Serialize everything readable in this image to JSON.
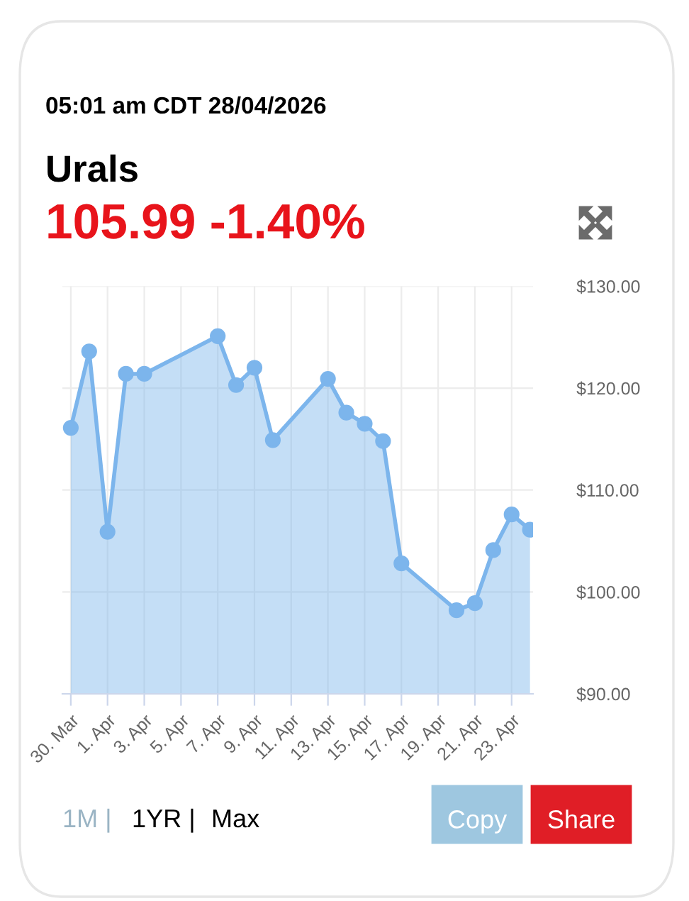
{
  "chart_data": {
    "type": "area",
    "title": "Urals",
    "subtitle": "105.99 -1.40%",
    "annotations": [
      "05:01 am CDT 28/04/2026",
      "1M |",
      "1YR |",
      "Max",
      "Copy",
      "Share"
    ],
    "x": [
      "2026-03-30",
      "2026-03-31",
      "2026-04-01",
      "2026-04-02",
      "2026-04-03",
      "2026-04-07",
      "2026-04-08",
      "2026-04-09",
      "2026-04-10",
      "2026-04-13",
      "2026-04-14",
      "2026-04-15",
      "2026-04-16",
      "2026-04-17",
      "2026-04-20",
      "2026-04-21",
      "2026-04-22",
      "2026-04-23",
      "2026-04-24"
    ],
    "series": [
      {
        "color": "#7cb5ec",
        "values": [
          116.1,
          123.6,
          105.9,
          121.4,
          121.4,
          125.1,
          120.3,
          122.0,
          114.9,
          120.9,
          117.6,
          116.5,
          114.8,
          102.8,
          98.2,
          98.9,
          104.1,
          107.6,
          106.1
        ]
      }
    ],
    "xlim": [
      "2026-03-29T13:00",
      "2026-04-24T04:00"
    ],
    "xticks": [
      {
        "value": "2026-03-30",
        "label": "30. Mar"
      },
      {
        "value": "2026-04-01",
        "label": "1. Apr"
      },
      {
        "value": "2026-04-03",
        "label": "3. Apr"
      },
      {
        "value": "2026-04-05",
        "label": "5. Apr"
      },
      {
        "value": "2026-04-07",
        "label": "7. Apr"
      },
      {
        "value": "2026-04-09",
        "label": "9. Apr"
      },
      {
        "value": "2026-04-11",
        "label": "11. Apr"
      },
      {
        "value": "2026-04-13",
        "label": "13. Apr"
      },
      {
        "value": "2026-04-15",
        "label": "15. Apr"
      },
      {
        "value": "2026-04-17",
        "label": "17. Apr"
      },
      {
        "value": "2026-04-19",
        "label": "19. Apr"
      },
      {
        "value": "2026-04-21",
        "label": "21. Apr"
      },
      {
        "value": "2026-04-23",
        "label": "23. Apr"
      }
    ],
    "ylim": [
      90,
      130
    ],
    "yticks": [
      {
        "value": 90,
        "label": "$90.00"
      },
      {
        "value": 100,
        "label": "$100.00"
      },
      {
        "value": 110,
        "label": "$110.00"
      },
      {
        "value": 120,
        "label": "$120.00"
      },
      {
        "value": 130,
        "label": "$130.00"
      }
    ],
    "grid": true,
    "marker": "circle",
    "line_style": "solid"
  }
}
